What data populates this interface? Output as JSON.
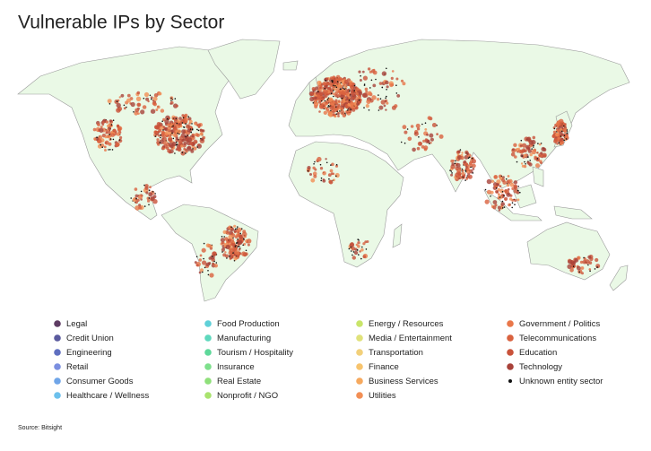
{
  "title": "Vulnerable IPs by Sector",
  "legend": [
    {
      "label": "Legal",
      "color": "#5e3c63"
    },
    {
      "label": "Credit Union",
      "color": "#5a5a9e"
    },
    {
      "label": "Engineering",
      "color": "#5f6fc0"
    },
    {
      "label": "Retail",
      "color": "#7b8fe0"
    },
    {
      "label": "Consumer Goods",
      "color": "#6fa5e8"
    },
    {
      "label": "Healthcare / Wellness",
      "color": "#6cc0ec"
    },
    {
      "label": "Food Production",
      "color": "#5fd0d8"
    },
    {
      "label": "Manufacturing",
      "color": "#5ed8bd"
    },
    {
      "label": "Tourism / Hospitality",
      "color": "#5ed89a"
    },
    {
      "label": "Insurance",
      "color": "#7ee08c"
    },
    {
      "label": "Real Estate",
      "color": "#8fe07a"
    },
    {
      "label": "Nonprofit / NGO",
      "color": "#a9e36e"
    },
    {
      "label": "Energy / Resources",
      "color": "#c9e56a"
    },
    {
      "label": "Media / Entertainment",
      "color": "#e0e27a"
    },
    {
      "label": "Transportation",
      "color": "#f2d07a"
    },
    {
      "label": "Finance",
      "color": "#f7c46e"
    },
    {
      "label": "Business Services",
      "color": "#f6a95e"
    },
    {
      "label": "Utilities",
      "color": "#f28f55"
    },
    {
      "label": "Government / Politics",
      "color": "#e9774a"
    },
    {
      "label": "Telecommunications",
      "color": "#d9623f"
    },
    {
      "label": "Education",
      "color": "#c9523a"
    },
    {
      "label": "Technology",
      "color": "#a8423a"
    },
    {
      "label": "Unknown entity sector",
      "color": "#111111"
    }
  ],
  "source": "Source: Bitsight"
}
